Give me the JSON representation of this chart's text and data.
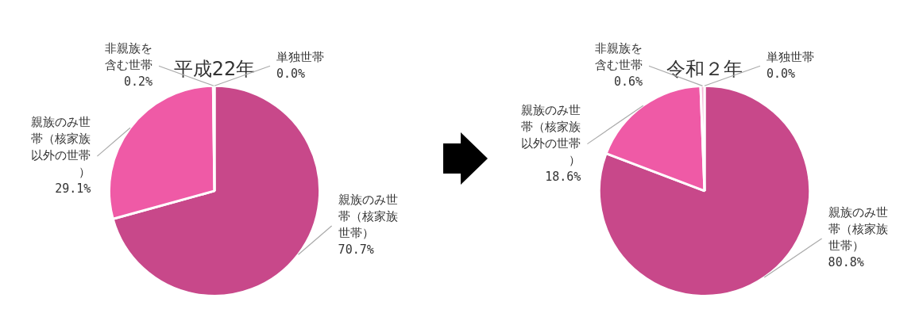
{
  "chart_data": [
    {
      "type": "pie",
      "title": "平成22年",
      "categories": [
        "単独世帯",
        "親族のみ世帯（核家族世帯）",
        "親族のみ世帯（核家族以外の世帯）",
        "非親族を含む世帯"
      ],
      "values": [
        0.0,
        70.7,
        29.1,
        0.2
      ],
      "colors": [
        "#f5b8d6",
        "#c8488a",
        "#ef5aa6",
        "#f5b8d6"
      ],
      "value_labels": [
        "0.0%",
        "70.7%",
        "29.1%",
        "0.2%"
      ]
    },
    {
      "type": "pie",
      "title": "令和２年",
      "categories": [
        "単独世帯",
        "親族のみ世帯（核家族世帯）",
        "親族のみ世帯（核家族以外の世帯）",
        "非親族を含む世帯"
      ],
      "values": [
        0.0,
        80.8,
        18.6,
        0.6
      ],
      "colors": [
        "#f5b8d6",
        "#c8488a",
        "#ef5aa6",
        "#f5b8d6"
      ],
      "value_labels": [
        "0.0%",
        "80.8%",
        "18.6%",
        "0.6%"
      ]
    }
  ]
}
